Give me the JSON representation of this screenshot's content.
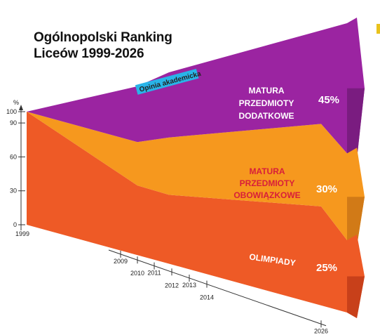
{
  "title": {
    "line1": "Ogólnopolski Ranking",
    "line2": "Liceów 1999-2026"
  },
  "colors": {
    "olimpiady": "#ee5a26",
    "olimpiady_dark": "#c8401a",
    "obowiazkowe": "#f6981e",
    "obowiazkowe_dark": "#d17a17",
    "dodatkowe": "#9b24a1",
    "dodatkowe_dark": "#7a1c80",
    "opinia": "#29b4e8",
    "corner_mark": "#e9c21c"
  },
  "chart_data": {
    "type": "area",
    "y_axis": {
      "unit_label": "%",
      "ticks": [
        0,
        30,
        60,
        90,
        100
      ],
      "ylim": [
        0,
        100
      ]
    },
    "x_axis": {
      "start_label": "1999",
      "year_labels": [
        "2009",
        "2010",
        "2011",
        "2012",
        "2013",
        "2014",
        "2026"
      ]
    },
    "series": [
      {
        "name": "OLIMPIADY",
        "share_label": "25%",
        "values": [
          100,
          40,
          40,
          36,
          36,
          36,
          25
        ]
      },
      {
        "name": "MATURA PRZEDMIOTY OBOWIĄZKOWE",
        "name_lines": [
          "MATURA",
          "PRZEDMIOTY",
          "OBOWIĄZKOWE"
        ],
        "share_label": "30%",
        "values": [
          0,
          25,
          25,
          30,
          30,
          30,
          30
        ]
      },
      {
        "name": "MATURA PRZEDMIOTY DODATKOWE",
        "name_lines": [
          "MATURA",
          "PRZEDMIOTY",
          "DODATKOWE"
        ],
        "share_label": "45%",
        "values": [
          0,
          32,
          32,
          34,
          34,
          34,
          45
        ]
      },
      {
        "name": "Opinia akademicka",
        "values": [
          0,
          3,
          0,
          0,
          0,
          0,
          0
        ]
      }
    ]
  }
}
